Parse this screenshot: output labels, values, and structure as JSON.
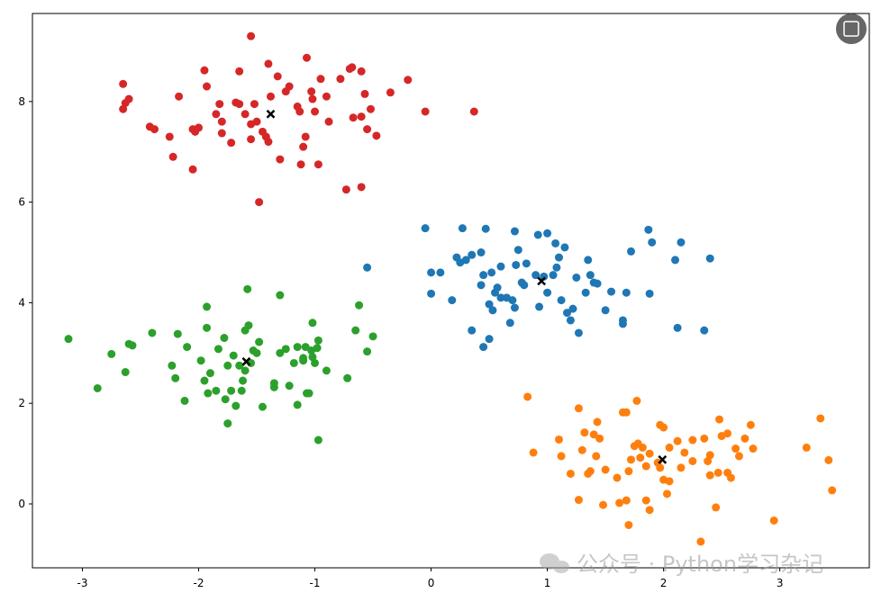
{
  "chart_data": {
    "type": "scatter",
    "xlim": [
      -3.43,
      3.77
    ],
    "ylim": [
      -1.27,
      9.75
    ],
    "xticks": [
      -3,
      -2,
      -1,
      0,
      1,
      2,
      3
    ],
    "yticks": [
      0,
      2,
      4,
      6,
      8
    ],
    "watermark": "公众号 · Python学习杂记",
    "series": [
      {
        "color": "#1f77b4",
        "marker": "o",
        "x": [
          -0.05,
          0.0,
          0.0,
          0.08,
          0.18,
          0.22,
          0.25,
          0.27,
          0.3,
          0.35,
          0.35,
          0.43,
          0.43,
          0.45,
          0.45,
          0.47,
          0.5,
          0.5,
          0.52,
          0.53,
          0.55,
          0.57,
          0.6,
          0.6,
          0.65,
          0.68,
          0.7,
          0.72,
          0.72,
          0.73,
          0.75,
          0.78,
          0.8,
          0.82,
          0.9,
          0.92,
          0.93,
          0.97,
          1.0,
          1.0,
          1.05,
          1.07,
          1.08,
          1.1,
          1.12,
          1.15,
          1.17,
          1.2,
          1.22,
          1.25,
          1.27,
          1.33,
          1.35,
          1.37,
          1.4,
          1.43,
          1.5,
          1.55,
          1.65,
          1.65,
          1.68,
          1.72,
          1.87,
          1.88,
          1.9,
          2.1,
          2.12,
          2.15,
          2.35,
          2.4,
          -0.55
        ],
        "values": [
          5.48,
          4.6,
          4.18,
          4.6,
          4.05,
          4.9,
          4.8,
          5.48,
          4.85,
          4.95,
          3.45,
          4.35,
          5.0,
          4.55,
          3.12,
          5.47,
          3.28,
          3.97,
          4.6,
          3.85,
          4.2,
          4.3,
          4.72,
          4.1,
          4.1,
          3.6,
          4.05,
          5.42,
          3.9,
          4.75,
          5.05,
          4.4,
          4.35,
          4.78,
          4.55,
          5.35,
          3.92,
          4.52,
          5.38,
          4.2,
          4.55,
          5.18,
          4.7,
          4.9,
          4.05,
          5.1,
          3.8,
          3.65,
          3.88,
          4.5,
          3.4,
          4.2,
          4.85,
          4.55,
          4.4,
          4.38,
          3.85,
          4.22,
          3.65,
          3.58,
          4.2,
          5.02,
          5.45,
          4.18,
          5.2,
          4.85,
          3.5,
          5.2,
          3.45,
          4.88,
          4.7
        ]
      },
      {
        "color": "#ff7f0e",
        "marker": "o",
        "x": [
          0.83,
          0.88,
          1.1,
          1.12,
          1.2,
          1.27,
          1.27,
          1.3,
          1.32,
          1.35,
          1.37,
          1.4,
          1.42,
          1.43,
          1.45,
          1.48,
          1.5,
          1.6,
          1.62,
          1.65,
          1.68,
          1.68,
          1.7,
          1.7,
          1.72,
          1.75,
          1.77,
          1.78,
          1.8,
          1.82,
          1.85,
          1.85,
          1.88,
          1.88,
          1.95,
          1.97,
          1.97,
          2.0,
          2.0,
          2.03,
          2.05,
          2.05,
          2.12,
          2.15,
          2.18,
          2.25,
          2.25,
          2.32,
          2.35,
          2.38,
          2.4,
          2.4,
          2.45,
          2.47,
          2.48,
          2.5,
          2.55,
          2.55,
          2.58,
          2.62,
          2.65,
          2.7,
          2.75,
          2.77,
          2.95,
          3.23,
          3.35,
          3.42,
          3.45
        ],
        "values": [
          2.13,
          1.02,
          1.28,
          0.95,
          0.6,
          1.9,
          0.08,
          1.07,
          1.42,
          0.6,
          0.65,
          1.38,
          0.95,
          1.63,
          1.3,
          -0.02,
          0.68,
          0.52,
          0.02,
          1.82,
          0.07,
          1.82,
          0.65,
          -0.42,
          0.88,
          1.15,
          2.05,
          1.2,
          0.92,
          1.12,
          0.75,
          0.07,
          -0.12,
          1.0,
          0.82,
          0.72,
          1.57,
          1.52,
          0.48,
          0.2,
          0.45,
          1.12,
          1.25,
          0.72,
          1.02,
          1.27,
          0.85,
          -0.75,
          1.3,
          0.85,
          0.97,
          0.57,
          -0.07,
          0.62,
          1.68,
          1.35,
          1.4,
          0.62,
          0.52,
          1.1,
          0.95,
          1.3,
          1.57,
          1.1,
          -0.33,
          1.12,
          1.7,
          0.87,
          0.27
        ]
      },
      {
        "color": "#2ca02c",
        "marker": "o",
        "x": [
          -3.12,
          -2.87,
          -2.75,
          -2.63,
          -2.6,
          -2.57,
          -2.4,
          -2.23,
          -2.2,
          -2.18,
          -2.12,
          -2.1,
          -1.98,
          -1.95,
          -1.93,
          -1.93,
          -1.92,
          -1.9,
          -1.85,
          -1.83,
          -1.78,
          -1.77,
          -1.75,
          -1.75,
          -1.72,
          -1.7,
          -1.68,
          -1.65,
          -1.63,
          -1.62,
          -1.6,
          -1.6,
          -1.58,
          -1.57,
          -1.55,
          -1.53,
          -1.5,
          -1.48,
          -1.45,
          -1.35,
          -1.35,
          -1.3,
          -1.3,
          -1.25,
          -1.22,
          -1.18,
          -1.15,
          -1.15,
          -1.1,
          -1.1,
          -1.08,
          -1.07,
          -1.05,
          -1.03,
          -1.02,
          -1.02,
          -1.0,
          -0.98,
          -0.97,
          -0.97,
          -0.9,
          -0.72,
          -0.65,
          -0.62,
          -0.55,
          -0.5
        ],
        "values": [
          3.28,
          2.3,
          2.98,
          2.62,
          3.18,
          3.15,
          3.4,
          2.75,
          2.5,
          3.38,
          2.05,
          3.12,
          2.85,
          2.45,
          3.5,
          3.92,
          2.2,
          2.6,
          2.25,
          3.08,
          3.3,
          2.08,
          2.75,
          1.6,
          2.25,
          2.95,
          1.95,
          2.75,
          2.25,
          2.45,
          3.45,
          2.65,
          4.27,
          3.55,
          2.8,
          3.05,
          3.0,
          3.22,
          1.93,
          2.4,
          2.32,
          4.15,
          3.0,
          3.08,
          2.35,
          2.8,
          3.12,
          1.97,
          2.9,
          2.85,
          3.12,
          2.2,
          2.2,
          3.05,
          2.92,
          3.6,
          2.8,
          3.1,
          3.25,
          1.27,
          2.65,
          2.5,
          3.45,
          3.95,
          3.03,
          3.33
        ]
      },
      {
        "color": "#d62728",
        "marker": "o",
        "x": [
          -2.65,
          -2.6,
          -2.63,
          -2.65,
          -2.42,
          -2.38,
          -2.25,
          -2.22,
          -2.17,
          -2.05,
          -2.03,
          -2.0,
          -2.05,
          -1.95,
          -1.93,
          -1.85,
          -1.82,
          -1.8,
          -1.8,
          -1.72,
          -1.68,
          -1.65,
          -1.65,
          -1.6,
          -1.55,
          -1.55,
          -1.52,
          -1.55,
          -1.5,
          -1.45,
          -1.42,
          -1.4,
          -1.4,
          -1.38,
          -1.32,
          -1.3,
          -1.25,
          -1.22,
          -1.15,
          -1.13,
          -1.12,
          -1.1,
          -1.08,
          -1.07,
          -1.03,
          -1.02,
          -1.0,
          -0.97,
          -0.95,
          -0.9,
          -0.88,
          -0.78,
          -0.73,
          -0.7,
          -0.68,
          -0.67,
          -0.6,
          -0.6,
          -0.6,
          -0.57,
          -0.55,
          -0.52,
          -0.47,
          -0.35,
          -0.2,
          -0.05,
          0.37,
          -1.48
        ],
        "values": [
          8.35,
          8.05,
          7.97,
          7.85,
          7.5,
          7.45,
          7.3,
          6.9,
          8.1,
          7.45,
          7.4,
          7.48,
          6.65,
          8.62,
          8.3,
          7.75,
          7.95,
          7.6,
          7.37,
          7.18,
          7.98,
          8.6,
          7.95,
          7.75,
          7.25,
          7.55,
          7.95,
          9.3,
          7.6,
          7.4,
          7.3,
          7.2,
          8.75,
          8.1,
          8.5,
          6.85,
          8.2,
          8.3,
          7.9,
          7.8,
          6.75,
          7.1,
          7.3,
          8.87,
          8.2,
          8.05,
          7.8,
          6.75,
          8.45,
          8.1,
          7.6,
          8.45,
          6.25,
          8.65,
          8.68,
          7.68,
          8.6,
          7.7,
          6.3,
          8.15,
          7.45,
          7.85,
          7.32,
          8.18,
          8.43,
          7.8,
          7.8,
          6.0
        ]
      },
      {
        "color": "#000000",
        "marker": "x",
        "x": [
          0.95,
          1.99,
          -1.59,
          -1.38
        ],
        "values": [
          4.43,
          0.88,
          2.83,
          7.75
        ]
      }
    ]
  }
}
